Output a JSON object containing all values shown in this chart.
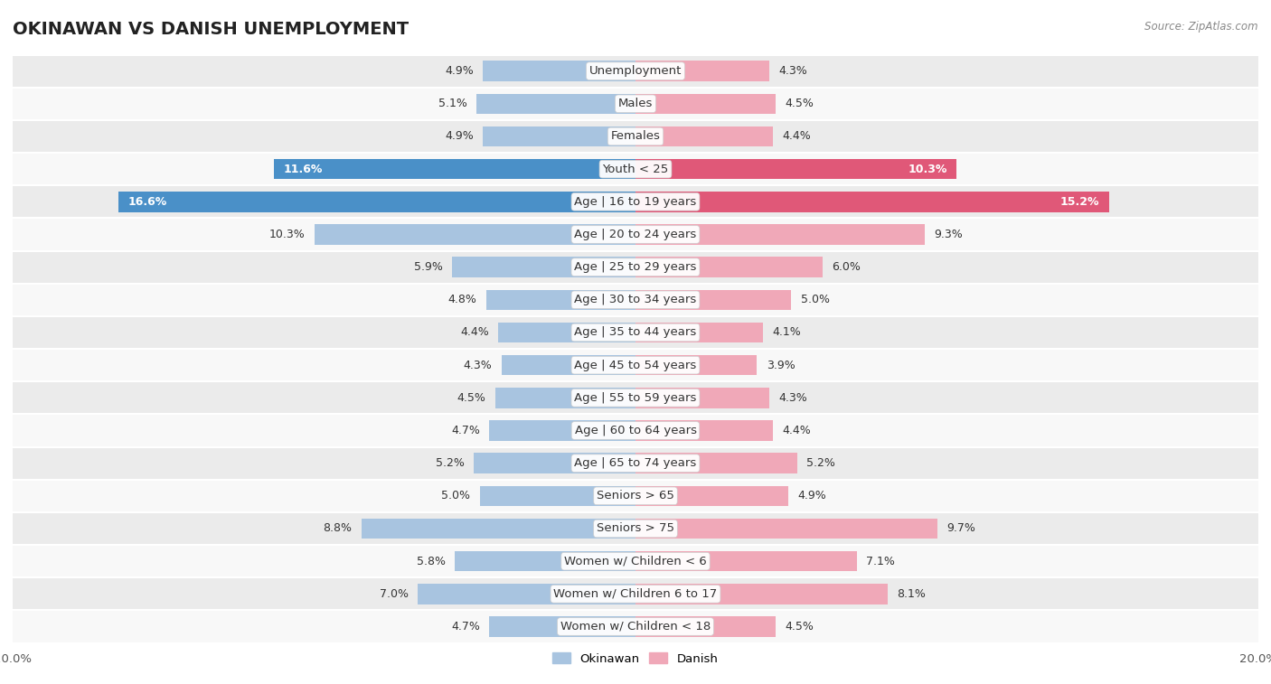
{
  "title": "OKINAWAN VS DANISH UNEMPLOYMENT",
  "source": "Source: ZipAtlas.com",
  "categories": [
    "Unemployment",
    "Males",
    "Females",
    "Youth < 25",
    "Age | 16 to 19 years",
    "Age | 20 to 24 years",
    "Age | 25 to 29 years",
    "Age | 30 to 34 years",
    "Age | 35 to 44 years",
    "Age | 45 to 54 years",
    "Age | 55 to 59 years",
    "Age | 60 to 64 years",
    "Age | 65 to 74 years",
    "Seniors > 65",
    "Seniors > 75",
    "Women w/ Children < 6",
    "Women w/ Children 6 to 17",
    "Women w/ Children < 18"
  ],
  "okinawan": [
    4.9,
    5.1,
    4.9,
    11.6,
    16.6,
    10.3,
    5.9,
    4.8,
    4.4,
    4.3,
    4.5,
    4.7,
    5.2,
    5.0,
    8.8,
    5.8,
    7.0,
    4.7
  ],
  "danish": [
    4.3,
    4.5,
    4.4,
    10.3,
    15.2,
    9.3,
    6.0,
    5.0,
    4.1,
    3.9,
    4.3,
    4.4,
    5.2,
    4.9,
    9.7,
    7.1,
    8.1,
    4.5
  ],
  "okinawan_color": "#a8c4e0",
  "danish_color": "#f0a8b8",
  "okinawan_color_highlight": "#4a90c8",
  "danish_color_highlight": "#e05878",
  "background_row_light": "#ebebeb",
  "background_row_white": "#f8f8f8",
  "axis_max": 20.0,
  "bar_height": 0.62,
  "title_fontsize": 14,
  "label_fontsize": 9.5,
  "tick_fontsize": 9.5,
  "value_fontsize": 9
}
